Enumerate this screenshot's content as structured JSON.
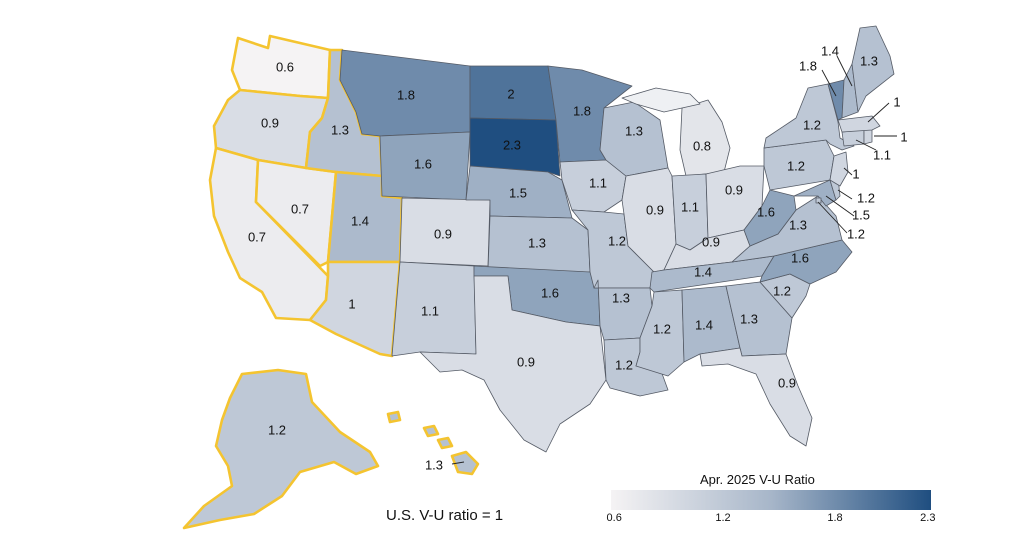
{
  "legend": {
    "title": "Apr. 2025 V-U Ratio",
    "min": 0.6,
    "max": 2.3,
    "ticks": [
      "0.6",
      "1.2",
      "1.8",
      "2.3"
    ],
    "colors": [
      "#f5f3f4",
      "#a7b6c9",
      "#1f4e80"
    ]
  },
  "note": "U.S. V-U ratio = 1",
  "highlight_color": "#f4c430",
  "chart_data": {
    "type": "choropleth",
    "states": {
      "WA": 0.6,
      "OR": 0.9,
      "CA": 0.7,
      "NV": 0.7,
      "ID": 1.3,
      "UT": 1.4,
      "AZ": 1,
      "MT": 1.8,
      "WY": 1.6,
      "CO": 0.9,
      "NM": 1.1,
      "ND": 2,
      "SD": 2.3,
      "NE": 1.5,
      "KS": 1.3,
      "OK": 1.6,
      "TX": 0.9,
      "MN": 1.8,
      "IA": 1.1,
      "MO": 1.2,
      "AR": 1.3,
      "LA": 1.2,
      "WI": 1.3,
      "IL": 0.9,
      "MI": 0.8,
      "IN": 1.1,
      "OH": 0.9,
      "KY": 0.9,
      "TN": 1.4,
      "MS": 1.2,
      "AL": 1.4,
      "GA": 1.3,
      "FL": 0.9,
      "SC": 1.2,
      "NC": 1.6,
      "VA": 1.3,
      "WV": 1.6,
      "PA": 1.2,
      "NY": 1.2,
      "ME": 1.3,
      "VT": 1.8,
      "NH": 1.4,
      "MA": 1,
      "RI": 1,
      "CT": 1.1,
      "NJ": 1,
      "DE": 1.2,
      "MD": 1.5,
      "DC": 1.2,
      "AK": 1.2,
      "HI": 1.3
    },
    "highlighted_states": [
      "WA",
      "OR",
      "CA",
      "NV",
      "ID",
      "UT",
      "AZ",
      "AK",
      "HI"
    ]
  }
}
